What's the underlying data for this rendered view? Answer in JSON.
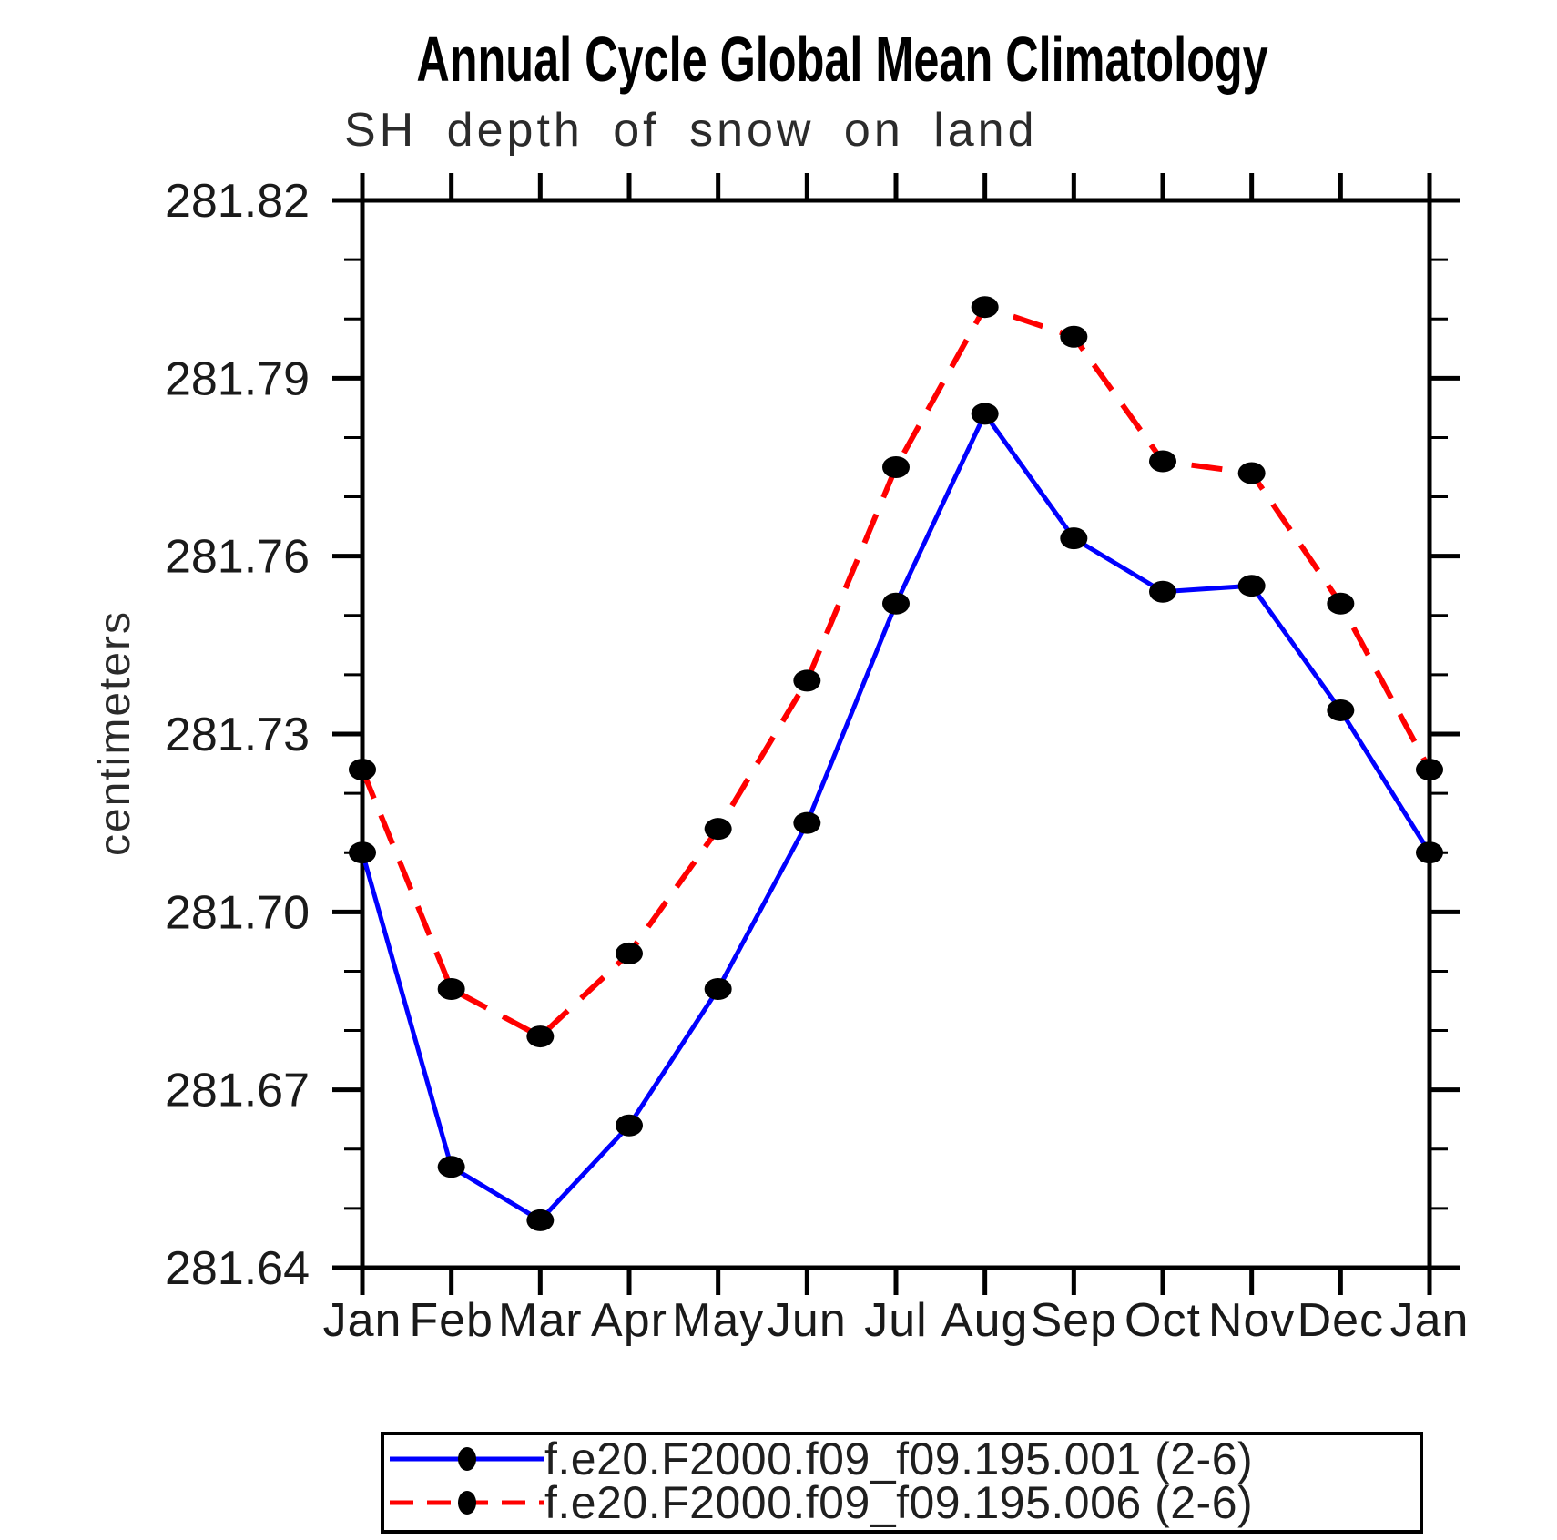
{
  "page": {
    "background": "#ffffff"
  },
  "chart_data": {
    "type": "line",
    "title": "Annual Cycle Global Mean Climatology",
    "subtitle": "SH depth of snow on land",
    "ylabel": "centimeters",
    "xlabel": "",
    "x_categories": [
      "Jan",
      "Feb",
      "Mar",
      "Apr",
      "May",
      "Jun",
      "Jul",
      "Aug",
      "Sep",
      "Oct",
      "Nov",
      "Dec",
      "Jan"
    ],
    "ylim": [
      281.64,
      281.82
    ],
    "y_major_step": 0.03,
    "y_minor_step": 0.01,
    "y_major_tick_labels": [
      "281.82",
      "281.79",
      "281.76",
      "281.73",
      "281.70",
      "281.67",
      "281.64"
    ],
    "grid": false,
    "legend_position": "bottom",
    "axis_color": "#000000",
    "marker_color": "#000000",
    "series": [
      {
        "name": "f.e20.F2000.f09_f09.195.001 (2-6)",
        "color": "#0000ff",
        "line_style": "solid",
        "marker": "filled-ellipse",
        "values": [
          281.71,
          281.657,
          281.648,
          281.664,
          281.687,
          281.715,
          281.752,
          281.784,
          281.763,
          281.754,
          281.755,
          281.734,
          281.71
        ]
      },
      {
        "name": "f.e20.F2000.f09_f09.195.006 (2-6)",
        "color": "#ff0000",
        "line_style": "dashed",
        "marker": "filled-ellipse",
        "values": [
          281.724,
          281.687,
          281.679,
          281.693,
          281.714,
          281.739,
          281.775,
          281.802,
          281.797,
          281.776,
          281.774,
          281.752,
          281.724
        ]
      }
    ]
  }
}
